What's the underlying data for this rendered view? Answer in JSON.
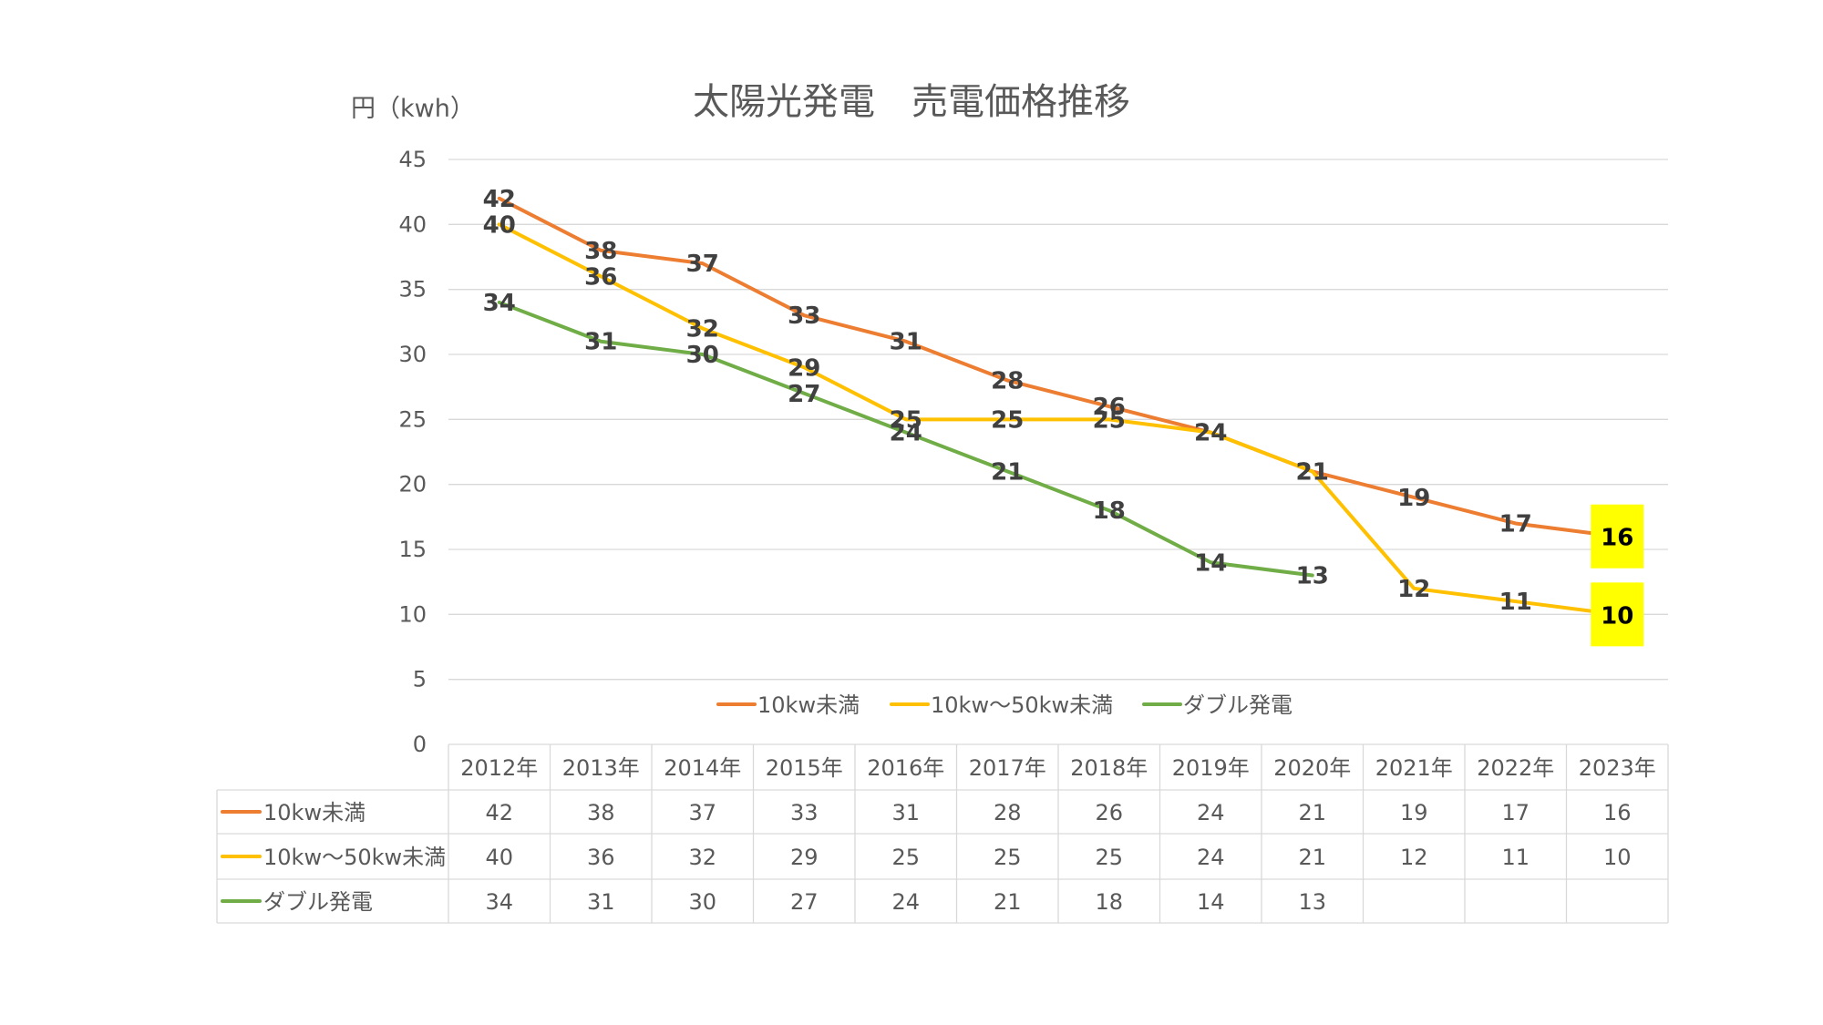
{
  "chart_data": {
    "type": "line",
    "title": "太陽光発電　売電価格推移",
    "ylabel": "円（kwh）",
    "ylim": [
      0,
      45
    ],
    "yticks": [
      0,
      5,
      10,
      15,
      20,
      25,
      30,
      35,
      40,
      45
    ],
    "categories": [
      "2012年",
      "2013年",
      "2014年",
      "2015年",
      "2016年",
      "2017年",
      "2018年",
      "2019年",
      "2020年",
      "2021年",
      "2022年",
      "2023年"
    ],
    "series": [
      {
        "name": "10kw未満",
        "color": "#ED7D31",
        "values": [
          42,
          38,
          37,
          33,
          31,
          28,
          26,
          24,
          21,
          19,
          17,
          16
        ]
      },
      {
        "name": "10kw～50kw未満",
        "color": "#FFC000",
        "values": [
          40,
          36,
          32,
          29,
          25,
          25,
          25,
          24,
          21,
          12,
          11,
          10
        ]
      },
      {
        "name": "ダブル発電",
        "color": "#70AD47",
        "values": [
          34,
          31,
          30,
          27,
          24,
          21,
          18,
          14,
          13,
          null,
          null,
          null
        ]
      }
    ],
    "highlight_color": "#FFFF00",
    "grid": true,
    "legend": "bottom",
    "data_table": true
  }
}
